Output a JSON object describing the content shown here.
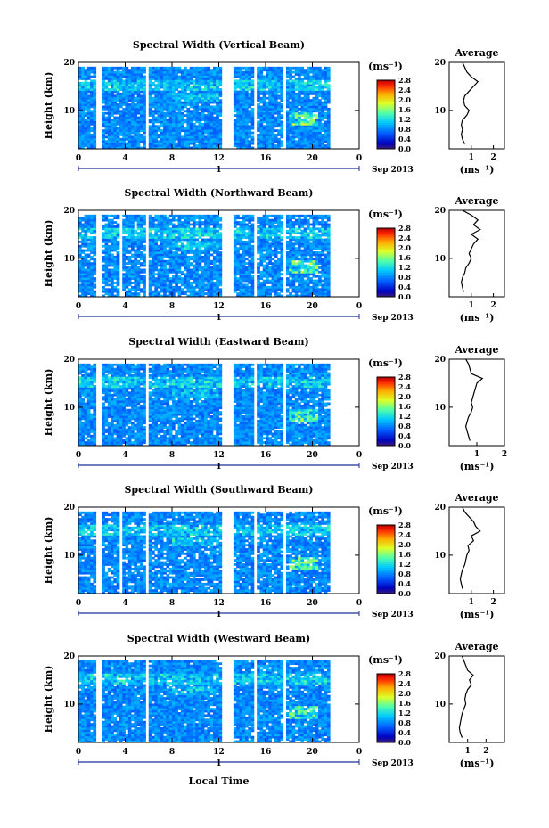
{
  "figure": {
    "xlabel": "Local Time",
    "date_label": "Sep 2013",
    "day_marker": "1",
    "avg_title": "Average",
    "unit_label": "(ms⁻¹)"
  },
  "chart_data": [
    {
      "type": "heatmap",
      "title": "Spectral Width (Vertical Beam)",
      "xlabel": "Local Time",
      "ylabel": "Height (km)",
      "x_ticks": [
        "0",
        "4",
        "8",
        "12",
        "16",
        "20",
        "0"
      ],
      "xlim": [
        0,
        24
      ],
      "ylim": [
        2,
        20
      ],
      "y_ticks": [
        "20",
        "10"
      ],
      "colorbar": {
        "label": "(ms⁻¹)",
        "ticks": [
          "2.8",
          "2.4",
          "2.0",
          "1.6",
          "1.2",
          "0.8",
          "0.4",
          "0.0"
        ],
        "range": [
          0,
          2.8
        ]
      },
      "gaps_hours": [
        [
          1.5,
          2.1
        ],
        [
          5.7,
          6.0
        ],
        [
          12.3,
          13.3
        ],
        [
          15.0,
          15.3
        ],
        [
          17.5,
          17.8
        ]
      ],
      "profile": {
        "title": "Average",
        "xlabel": "(ms⁻¹)",
        "x_ticks": [
          "1",
          "2"
        ],
        "xlim": [
          0,
          2.5
        ],
        "height_km": [
          3,
          4,
          5,
          6,
          7,
          8,
          9,
          10,
          11,
          12,
          13,
          14,
          15,
          16,
          17,
          18,
          19,
          20
        ],
        "width_ms": [
          0.7,
          0.6,
          0.55,
          0.6,
          0.55,
          0.6,
          0.8,
          0.9,
          0.7,
          0.65,
          0.7,
          0.9,
          1.1,
          1.3,
          1.0,
          0.8,
          0.7,
          0.6
        ]
      }
    },
    {
      "type": "heatmap",
      "title": "Spectral Width (Northward Beam)",
      "xlabel": "Local Time",
      "ylabel": "Height (km)",
      "x_ticks": [
        "0",
        "4",
        "8",
        "12",
        "16",
        "20",
        "0"
      ],
      "xlim": [
        0,
        24
      ],
      "ylim": [
        2,
        20
      ],
      "y_ticks": [
        "20",
        "10"
      ],
      "colorbar": {
        "label": "(ms⁻¹)",
        "ticks": [
          "2.8",
          "2.4",
          "2.0",
          "1.6",
          "1.2",
          "0.8",
          "0.4",
          "0.0"
        ],
        "range": [
          0,
          2.8
        ]
      },
      "gaps_hours": [
        [
          1.5,
          1.9
        ],
        [
          3.5,
          3.8
        ],
        [
          5.7,
          6.0
        ],
        [
          12.3,
          13.3
        ],
        [
          15.0,
          15.3
        ],
        [
          17.5,
          17.8
        ]
      ],
      "profile": {
        "title": "Average",
        "xlabel": "(ms⁻¹)",
        "x_ticks": [
          "1",
          "2"
        ],
        "xlim": [
          0,
          2.5
        ],
        "height_km": [
          3,
          4,
          5,
          6,
          7,
          8,
          9,
          10,
          11,
          12,
          13,
          14,
          15,
          16,
          17,
          18,
          19,
          20
        ],
        "width_ms": [
          0.65,
          0.6,
          0.55,
          0.6,
          0.7,
          0.75,
          0.9,
          1.0,
          0.9,
          1.0,
          1.1,
          1.3,
          1.0,
          1.4,
          1.1,
          1.3,
          1.0,
          0.6
        ]
      }
    },
    {
      "type": "heatmap",
      "title": "Spectral Width (Eastward Beam)",
      "xlabel": "Local Time",
      "ylabel": "Height (km)",
      "x_ticks": [
        "0",
        "4",
        "8",
        "12",
        "16",
        "20",
        "0"
      ],
      "xlim": [
        0,
        24
      ],
      "ylim": [
        2,
        20
      ],
      "y_ticks": [
        "20",
        "10"
      ],
      "colorbar": {
        "label": "(ms⁻¹)",
        "ticks": [
          "2.8",
          "2.4",
          "2.0",
          "1.6",
          "1.2",
          "0.8",
          "0.4",
          "0.0"
        ],
        "range": [
          0,
          2.8
        ]
      },
      "gaps_hours": [
        [
          1.5,
          2.1
        ],
        [
          5.7,
          6.0
        ],
        [
          12.3,
          13.3
        ],
        [
          15.0,
          15.3
        ],
        [
          17.5,
          17.8
        ]
      ],
      "profile": {
        "title": "Average",
        "xlabel": "(ms⁻¹)",
        "x_ticks": [
          "1",
          "2"
        ],
        "xlim": [
          0,
          2.0
        ],
        "height_km": [
          3,
          4,
          5,
          6,
          7,
          8,
          9,
          10,
          11,
          12,
          13,
          14,
          15,
          16,
          17,
          18,
          19,
          20
        ],
        "width_ms": [
          0.75,
          0.7,
          0.65,
          0.6,
          0.65,
          0.7,
          0.8,
          0.85,
          0.8,
          0.85,
          0.9,
          0.95,
          1.0,
          1.2,
          0.8,
          0.75,
          0.7,
          0.6
        ]
      }
    },
    {
      "type": "heatmap",
      "title": "Spectral Width (Southward Beam)",
      "xlabel": "Local Time",
      "ylabel": "Height (km)",
      "x_ticks": [
        "0",
        "4",
        "8",
        "12",
        "16",
        "20",
        "0"
      ],
      "xlim": [
        0,
        24
      ],
      "ylim": [
        2,
        20
      ],
      "y_ticks": [
        "20",
        "10"
      ],
      "colorbar": {
        "label": "(ms⁻¹)",
        "ticks": [
          "2.8",
          "2.4",
          "2.0",
          "1.6",
          "1.2",
          "0.8",
          "0.4",
          "0.0"
        ],
        "range": [
          0,
          2.8
        ]
      },
      "gaps_hours": [
        [
          1.5,
          1.9
        ],
        [
          3.5,
          3.8
        ],
        [
          5.7,
          6.0
        ],
        [
          12.3,
          13.3
        ],
        [
          15.0,
          15.3
        ],
        [
          17.5,
          17.8
        ]
      ],
      "profile": {
        "title": "Average",
        "xlabel": "(ms⁻¹)",
        "x_ticks": [
          "1",
          "2"
        ],
        "xlim": [
          0,
          2.5
        ],
        "height_km": [
          3,
          4,
          5,
          6,
          7,
          8,
          9,
          10,
          11,
          12,
          13,
          14,
          15,
          16,
          17,
          18,
          19,
          20
        ],
        "width_ms": [
          0.6,
          0.55,
          0.5,
          0.55,
          0.6,
          0.7,
          0.75,
          0.8,
          0.9,
          0.85,
          1.1,
          1.0,
          1.4,
          1.2,
          1.1,
          0.9,
          0.7,
          0.6
        ]
      }
    },
    {
      "type": "heatmap",
      "title": "Spectral Width (Westward Beam)",
      "xlabel": "Local Time",
      "ylabel": "Height (km)",
      "x_ticks": [
        "0",
        "4",
        "8",
        "12",
        "16",
        "20",
        "0"
      ],
      "xlim": [
        0,
        24
      ],
      "ylim": [
        2,
        20
      ],
      "y_ticks": [
        "20",
        "10"
      ],
      "colorbar": {
        "label": "(ms⁻¹)",
        "ticks": [
          "2.8",
          "2.4",
          "2.0",
          "1.6",
          "1.2",
          "0.8",
          "0.4",
          "0.0"
        ],
        "range": [
          0,
          2.8
        ]
      },
      "gaps_hours": [
        [
          1.5,
          1.9
        ],
        [
          5.7,
          6.0
        ],
        [
          12.3,
          13.3
        ],
        [
          15.0,
          15.3
        ],
        [
          17.5,
          17.8
        ]
      ],
      "profile": {
        "title": "Average",
        "xlabel": "(ms⁻¹)",
        "x_ticks": [
          "1",
          "2"
        ],
        "xlim": [
          0,
          3.0
        ],
        "height_km": [
          3,
          4,
          5,
          6,
          7,
          8,
          9,
          10,
          11,
          12,
          13,
          14,
          15,
          16,
          17,
          18,
          19,
          20
        ],
        "width_ms": [
          0.7,
          0.6,
          0.55,
          0.6,
          0.65,
          0.7,
          0.8,
          0.9,
          0.85,
          0.9,
          1.0,
          1.2,
          1.1,
          1.3,
          1.0,
          0.9,
          0.8,
          0.7
        ]
      }
    }
  ]
}
